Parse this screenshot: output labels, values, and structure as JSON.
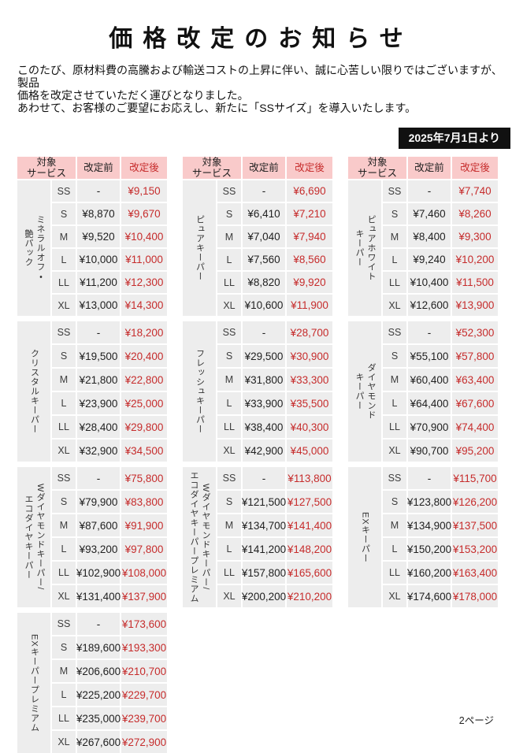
{
  "page": {
    "title": "価格改定のお知らせ",
    "intro": "このたび、原材料費の高騰および輸送コストの上昇に伴い、誠に心苦しい限りではございますが、製品\n価格を改定させていただく運びとなりました。\nあわせて、お客様のご要望にお応えし、新たに「SSサイズ」を導入いたします。",
    "effective_date_badge": "2025年7月1日より",
    "page_number": "2ページ"
  },
  "table_headers": {
    "service": "対象\nサービス",
    "before": "改定前",
    "after": "改定後"
  },
  "colors": {
    "header_pink": "#f9caca",
    "cell_gray": "#ededed",
    "price_red": "#c62c2c",
    "badge_black": "#111111"
  },
  "sizes": [
    "SS",
    "S",
    "M",
    "L",
    "LL",
    "XL"
  ],
  "tables": [
    {
      "service": "ミネラルオフ・\n艶パック",
      "has_header": true,
      "rows": [
        {
          "size": "SS",
          "before": "-",
          "after": "¥9,150"
        },
        {
          "size": "S",
          "before": "¥8,870",
          "after": "¥9,670"
        },
        {
          "size": "M",
          "before": "¥9,520",
          "after": "¥10,400"
        },
        {
          "size": "L",
          "before": "¥10,000",
          "after": "¥11,000"
        },
        {
          "size": "LL",
          "before": "¥11,200",
          "after": "¥12,300"
        },
        {
          "size": "XL",
          "before": "¥13,000",
          "after": "¥14,300"
        }
      ]
    },
    {
      "service": "ピュアキーパー",
      "has_header": true,
      "rows": [
        {
          "size": "SS",
          "before": "-",
          "after": "¥6,690"
        },
        {
          "size": "S",
          "before": "¥6,410",
          "after": "¥7,210"
        },
        {
          "size": "M",
          "before": "¥7,040",
          "after": "¥7,940"
        },
        {
          "size": "L",
          "before": "¥7,560",
          "after": "¥8,560"
        },
        {
          "size": "LL",
          "before": "¥8,820",
          "after": "¥9,920"
        },
        {
          "size": "XL",
          "before": "¥10,600",
          "after": "¥11,900"
        }
      ]
    },
    {
      "service": "ピュアホワイト\nキーパー",
      "has_header": true,
      "rows": [
        {
          "size": "SS",
          "before": "-",
          "after": "¥7,740"
        },
        {
          "size": "S",
          "before": "¥7,460",
          "after": "¥8,260"
        },
        {
          "size": "M",
          "before": "¥8,400",
          "after": "¥9,300"
        },
        {
          "size": "L",
          "before": "¥9,240",
          "after": "¥10,200"
        },
        {
          "size": "LL",
          "before": "¥10,400",
          "after": "¥11,500"
        },
        {
          "size": "XL",
          "before": "¥12,600",
          "after": "¥13,900"
        }
      ]
    },
    {
      "service": "クリスタルキーパー",
      "has_header": false,
      "rows": [
        {
          "size": "SS",
          "before": "-",
          "after": "¥18,200"
        },
        {
          "size": "S",
          "before": "¥19,500",
          "after": "¥20,400"
        },
        {
          "size": "M",
          "before": "¥21,800",
          "after": "¥22,800"
        },
        {
          "size": "L",
          "before": "¥23,900",
          "after": "¥25,000"
        },
        {
          "size": "LL",
          "before": "¥28,400",
          "after": "¥29,800"
        },
        {
          "size": "XL",
          "before": "¥32,900",
          "after": "¥34,500"
        }
      ]
    },
    {
      "service": "フレッシュキーパー",
      "has_header": false,
      "rows": [
        {
          "size": "SS",
          "before": "-",
          "after": "¥28,700"
        },
        {
          "size": "S",
          "before": "¥29,500",
          "after": "¥30,900"
        },
        {
          "size": "M",
          "before": "¥31,800",
          "after": "¥33,300"
        },
        {
          "size": "L",
          "before": "¥33,900",
          "after": "¥35,500"
        },
        {
          "size": "LL",
          "before": "¥38,400",
          "after": "¥40,300"
        },
        {
          "size": "XL",
          "before": "¥42,900",
          "after": "¥45,000"
        }
      ]
    },
    {
      "service": "ダイヤモンド\nキーパー",
      "has_header": false,
      "rows": [
        {
          "size": "SS",
          "before": "-",
          "after": "¥52,300"
        },
        {
          "size": "S",
          "before": "¥55,100",
          "after": "¥57,800"
        },
        {
          "size": "M",
          "before": "¥60,400",
          "after": "¥63,400"
        },
        {
          "size": "L",
          "before": "¥64,400",
          "after": "¥67,600"
        },
        {
          "size": "LL",
          "before": "¥70,900",
          "after": "¥74,400"
        },
        {
          "size": "XL",
          "before": "¥90,700",
          "after": "¥95,200"
        }
      ]
    },
    {
      "service": "Wダイヤモンドキーパー/\nエコダイヤキーパー",
      "has_header": false,
      "rows": [
        {
          "size": "SS",
          "before": "-",
          "after": "¥75,800"
        },
        {
          "size": "S",
          "before": "¥79,900",
          "after": "¥83,800"
        },
        {
          "size": "M",
          "before": "¥87,600",
          "after": "¥91,900"
        },
        {
          "size": "L",
          "before": "¥93,200",
          "after": "¥97,800"
        },
        {
          "size": "LL",
          "before": "¥102,900",
          "after": "¥108,000"
        },
        {
          "size": "XL",
          "before": "¥131,400",
          "after": "¥137,900"
        }
      ]
    },
    {
      "service": "Wダイヤモンドキーパー/\nエコダイヤキーパープレミアム",
      "has_header": false,
      "rows": [
        {
          "size": "SS",
          "before": "-",
          "after": "¥113,800"
        },
        {
          "size": "S",
          "before": "¥121,500",
          "after": "¥127,500"
        },
        {
          "size": "M",
          "before": "¥134,700",
          "after": "¥141,400"
        },
        {
          "size": "L",
          "before": "¥141,200",
          "after": "¥148,200"
        },
        {
          "size": "LL",
          "before": "¥157,800",
          "after": "¥165,600"
        },
        {
          "size": "XL",
          "before": "¥200,200",
          "after": "¥210,200"
        }
      ]
    },
    {
      "service": "EXキーパー",
      "has_header": false,
      "rows": [
        {
          "size": "SS",
          "before": "-",
          "after": "¥115,700"
        },
        {
          "size": "S",
          "before": "¥123,800",
          "after": "¥126,200"
        },
        {
          "size": "M",
          "before": "¥134,900",
          "after": "¥137,500"
        },
        {
          "size": "L",
          "before": "¥150,200",
          "after": "¥153,200"
        },
        {
          "size": "LL",
          "before": "¥160,200",
          "after": "¥163,400"
        },
        {
          "size": "XL",
          "before": "¥174,600",
          "after": "¥178,000"
        }
      ]
    },
    {
      "service": "EXキーパープレミアム",
      "has_header": false,
      "rows": [
        {
          "size": "SS",
          "before": "-",
          "after": "¥173,600"
        },
        {
          "size": "S",
          "before": "¥189,600",
          "after": "¥193,300"
        },
        {
          "size": "M",
          "before": "¥206,600",
          "after": "¥210,700"
        },
        {
          "size": "L",
          "before": "¥225,200",
          "after": "¥229,700"
        },
        {
          "size": "LL",
          "before": "¥235,000",
          "after": "¥239,700"
        },
        {
          "size": "XL",
          "before": "¥267,600",
          "after": "¥272,900"
        }
      ]
    }
  ]
}
